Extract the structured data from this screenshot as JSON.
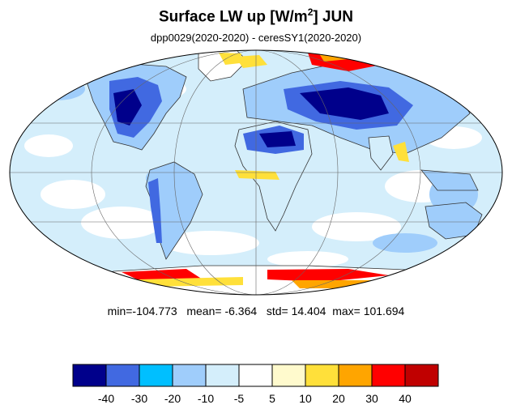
{
  "title": {
    "main": "Surface LW up [W/m",
    "superscript": "2",
    "after": "]  JUN"
  },
  "subtitle": "dpp0029(2020-2020) - ceresSY1(2020-2020)",
  "stats": {
    "min_label": "min=",
    "min": "-104.773",
    "mean_label": "mean= ",
    "mean": "-6.364",
    "std_label": "std= ",
    "std": "14.404",
    "max_label": "max= ",
    "max": "101.694"
  },
  "colorbar": {
    "colors": [
      "#00008b",
      "#4169e1",
      "#00bfff",
      "#9fcdfb",
      "#d4eefb",
      "#ffffff",
      "#fffacd",
      "#ffe03a",
      "#ffa500",
      "#ff0000",
      "#c00000"
    ],
    "tick_labels": [
      "-40",
      "-30",
      "-20",
      "-10",
      "-5",
      "5",
      "10",
      "20",
      "30",
      "40"
    ]
  },
  "map": {
    "projection": "mollweide",
    "ocean_color": "#d4eefb",
    "land_line_color": "#333333",
    "grid_color": "#666666"
  }
}
